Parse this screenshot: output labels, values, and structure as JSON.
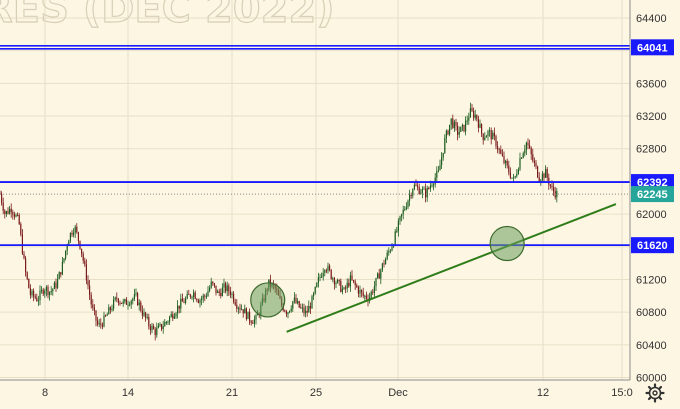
{
  "watermark": "RES (DEC 2022)",
  "settings_icon": "gear-icon",
  "chart_data": {
    "type": "candlestick",
    "ylim": [
      59970,
      64620
    ],
    "y_ticks": [
      60000,
      60400,
      60800,
      61200,
      61600,
      62000,
      62400,
      62800,
      63200,
      63600,
      64000,
      64400
    ],
    "x_ticks": [
      "8",
      "14",
      "21",
      "25",
      "Dec",
      "12",
      "15:0"
    ],
    "grid": true,
    "levels": [
      {
        "value": 64041,
        "label": "64041",
        "color": "#1a1aff"
      },
      {
        "value": 62392,
        "label": "62392",
        "color": "#1a1aff"
      },
      {
        "value": 61620,
        "label": "61620",
        "color": "#1a1aff"
      }
    ],
    "last_price": {
      "value": 62245,
      "label": "62245",
      "color": "#26a69a"
    },
    "trendline": {
      "from": [
        0.455,
        60560
      ],
      "to": [
        0.93,
        62000
      ],
      "color": "#2e7d1a"
    },
    "circles": [
      {
        "x": 0.425,
        "y": 60950,
        "color": "#6b9e5c"
      },
      {
        "x": 0.805,
        "y": 61640,
        "color": "#6b9e5c"
      }
    ],
    "candle_path": [
      [
        0.0,
        62250
      ],
      [
        0.008,
        62000
      ],
      [
        0.018,
        62080
      ],
      [
        0.03,
        61900
      ],
      [
        0.04,
        61300
      ],
      [
        0.048,
        61020
      ],
      [
        0.06,
        60960
      ],
      [
        0.07,
        61100
      ],
      [
        0.08,
        61050
      ],
      [
        0.09,
        61150
      ],
      [
        0.1,
        61400
      ],
      [
        0.108,
        61700
      ],
      [
        0.118,
        61850
      ],
      [
        0.128,
        61600
      ],
      [
        0.138,
        61200
      ],
      [
        0.146,
        60850
      ],
      [
        0.156,
        60620
      ],
      [
        0.165,
        60700
      ],
      [
        0.176,
        60850
      ],
      [
        0.186,
        60980
      ],
      [
        0.196,
        60900
      ],
      [
        0.206,
        60950
      ],
      [
        0.216,
        60980
      ],
      [
        0.226,
        60800
      ],
      [
        0.236,
        60650
      ],
      [
        0.246,
        60560
      ],
      [
        0.256,
        60620
      ],
      [
        0.266,
        60700
      ],
      [
        0.276,
        60800
      ],
      [
        0.286,
        60900
      ],
      [
        0.296,
        60960
      ],
      [
        0.306,
        61050
      ],
      [
        0.316,
        60950
      ],
      [
        0.326,
        61000
      ],
      [
        0.336,
        61150
      ],
      [
        0.346,
        61020
      ],
      [
        0.356,
        61100
      ],
      [
        0.366,
        61050
      ],
      [
        0.376,
        60900
      ],
      [
        0.386,
        60830
      ],
      [
        0.396,
        60720
      ],
      [
        0.406,
        60700
      ],
      [
        0.416,
        60900
      ],
      [
        0.426,
        61150
      ],
      [
        0.436,
        61100
      ],
      [
        0.446,
        60900
      ],
      [
        0.456,
        60800
      ],
      [
        0.466,
        60950
      ],
      [
        0.476,
        60850
      ],
      [
        0.486,
        60780
      ],
      [
        0.496,
        60950
      ],
      [
        0.506,
        61200
      ],
      [
        0.516,
        61380
      ],
      [
        0.526,
        61250
      ],
      [
        0.536,
        61150
      ],
      [
        0.546,
        61050
      ],
      [
        0.556,
        61200
      ],
      [
        0.566,
        61100
      ],
      [
        0.576,
        61000
      ],
      [
        0.586,
        60980
      ],
      [
        0.596,
        61150
      ],
      [
        0.606,
        61350
      ],
      [
        0.616,
        61520
      ],
      [
        0.626,
        61700
      ],
      [
        0.636,
        61950
      ],
      [
        0.646,
        62150
      ],
      [
        0.656,
        62350
      ],
      [
        0.666,
        62300
      ],
      [
        0.676,
        62250
      ],
      [
        0.686,
        62400
      ],
      [
        0.696,
        62500
      ],
      [
        0.706,
        62900
      ],
      [
        0.716,
        63150
      ],
      [
        0.726,
        63000
      ],
      [
        0.736,
        63050
      ],
      [
        0.746,
        63250
      ],
      [
        0.756,
        63200
      ],
      [
        0.766,
        62950
      ],
      [
        0.776,
        63000
      ],
      [
        0.786,
        62900
      ],
      [
        0.796,
        62700
      ],
      [
        0.806,
        62550
      ],
      [
        0.816,
        62400
      ],
      [
        0.826,
        62700
      ],
      [
        0.836,
        62880
      ],
      [
        0.846,
        62650
      ],
      [
        0.856,
        62450
      ],
      [
        0.866,
        62500
      ],
      [
        0.876,
        62300
      ],
      [
        0.884,
        62245
      ]
    ]
  }
}
